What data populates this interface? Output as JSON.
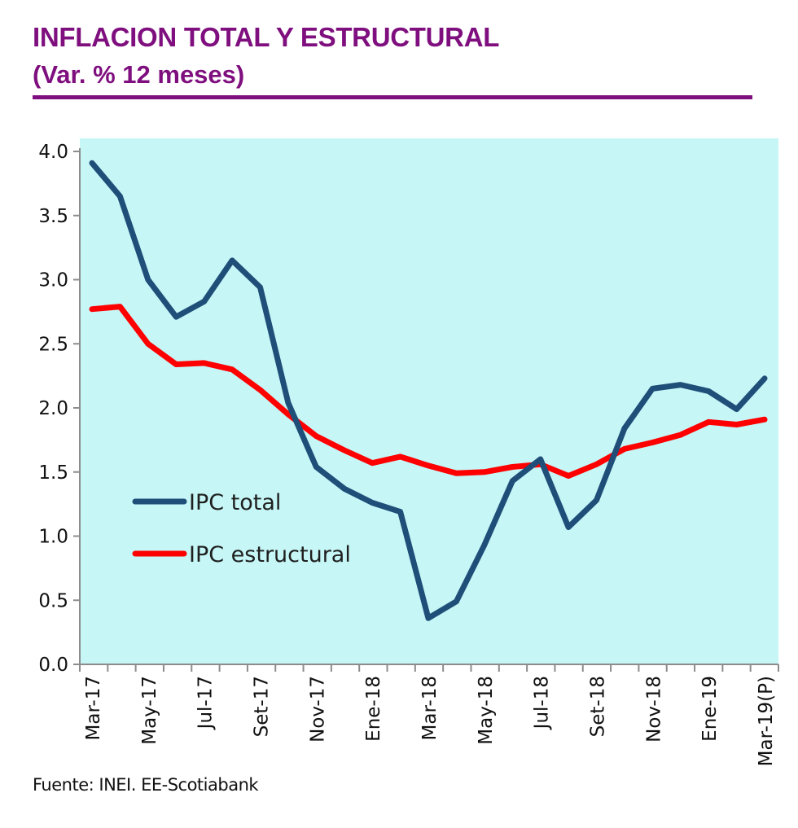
{
  "header": {
    "title": "INFLACION TOTAL Y ESTRUCTURAL",
    "subtitle": "(Var. % 12 meses)",
    "accent_color": "#7f0f7e"
  },
  "footer": {
    "source": "Fuente: INEI. EE-Scotiabank"
  },
  "chart_data": {
    "type": "line",
    "title": "INFLACION TOTAL Y ESTRUCTURAL",
    "subtitle": "(Var. % 12 meses)",
    "xlabel": "",
    "ylabel": "",
    "ylim": [
      0,
      4
    ],
    "yticks": [
      "0.0",
      "0.5",
      "1.0",
      "1.5",
      "2.0",
      "2.5",
      "3.0",
      "3.5",
      "4.0"
    ],
    "ytick_values": [
      0,
      0.5,
      1.0,
      1.5,
      2.0,
      2.5,
      3.0,
      3.5,
      4.0
    ],
    "grid": false,
    "plot_background": "#c6f6f6",
    "legend_position": "center-left",
    "x": [
      "Mar-17",
      "Abr-17",
      "May-17",
      "Jun-17",
      "Jul-17",
      "Ago-17",
      "Set-17",
      "Oct-17",
      "Nov-17",
      "Dic-17",
      "Ene-18",
      "Feb-18",
      "Mar-18",
      "Abr-18",
      "May-18",
      "Jun-18",
      "Jul-18",
      "Ago-18",
      "Set-18",
      "Oct-18",
      "Nov-18",
      "Dic-18",
      "Ene-19",
      "Feb-19",
      "Mar-19(P)"
    ],
    "xtick_labels": [
      {
        "index": 0,
        "label": "Mar-17"
      },
      {
        "index": 2,
        "label": "May-17"
      },
      {
        "index": 4,
        "label": "Jul-17"
      },
      {
        "index": 6,
        "label": "Set-17"
      },
      {
        "index": 8,
        "label": "Nov-17"
      },
      {
        "index": 10,
        "label": "Ene-18"
      },
      {
        "index": 12,
        "label": "Mar-18"
      },
      {
        "index": 14,
        "label": "May-18"
      },
      {
        "index": 16,
        "label": "Jul-18"
      },
      {
        "index": 18,
        "label": "Set-18"
      },
      {
        "index": 20,
        "label": "Nov-18"
      },
      {
        "index": 22,
        "label": "Ene-19"
      },
      {
        "index": 24,
        "label": "Mar-19(P)"
      }
    ],
    "series": [
      {
        "name": "IPC total",
        "color": "#1f4e79",
        "values": [
          3.91,
          3.65,
          3.0,
          2.71,
          2.83,
          3.15,
          2.94,
          2.04,
          1.54,
          1.37,
          1.26,
          1.19,
          0.36,
          0.49,
          0.93,
          1.43,
          1.6,
          1.07,
          1.28,
          1.84,
          2.15,
          2.18,
          2.13,
          1.99,
          2.23
        ]
      },
      {
        "name": "IPC estructural",
        "color": "#ff0000",
        "values": [
          2.77,
          2.79,
          2.5,
          2.34,
          2.35,
          2.3,
          2.14,
          1.95,
          1.78,
          1.67,
          1.57,
          1.62,
          1.55,
          1.49,
          1.5,
          1.54,
          1.56,
          1.47,
          1.56,
          1.68,
          1.73,
          1.79,
          1.89,
          1.87,
          1.91
        ]
      }
    ]
  }
}
